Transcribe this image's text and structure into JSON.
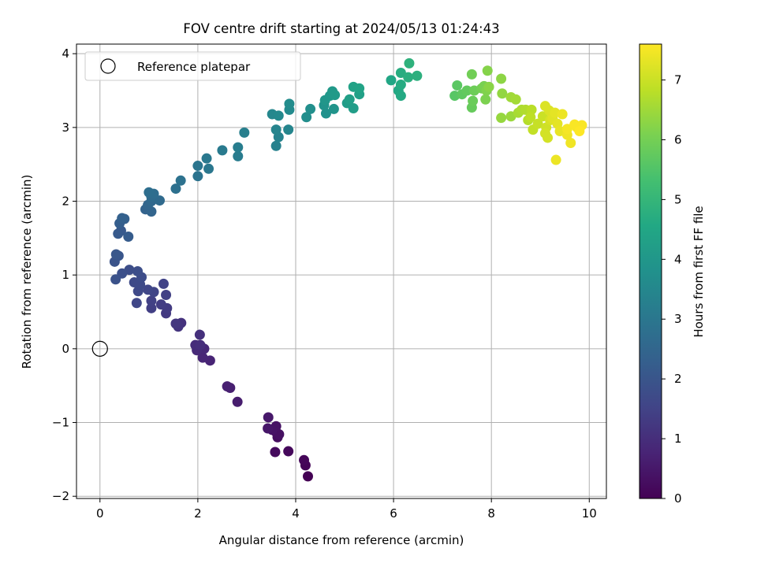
{
  "chart_data": {
    "type": "scatter",
    "title": "FOV centre drift starting at 2024/05/13 01:24:43",
    "xlabel": "Angular distance from reference (arcmin)",
    "ylabel": "Rotation from reference (arcmin)",
    "xlim": [
      -0.48,
      10.35
    ],
    "ylim": [
      -2.03,
      4.13
    ],
    "xticks": [
      0,
      2,
      4,
      6,
      8,
      10
    ],
    "xtick_labels": [
      "0",
      "2",
      "4",
      "6",
      "8",
      "10"
    ],
    "yticks": [
      -2,
      -1,
      0,
      1,
      2,
      3,
      4
    ],
    "ytick_labels": [
      "−2",
      "−1",
      "0",
      "1",
      "2",
      "3",
      "4"
    ],
    "grid": true,
    "legend": {
      "position": "top-left",
      "entries": [
        "Reference platepar"
      ]
    },
    "reference_point": {
      "x": 0,
      "y": 0,
      "label": "Reference platepar"
    },
    "colorbar": {
      "label": "Hours from first FF file",
      "min": 0,
      "max": 7.6,
      "ticks": [
        0,
        1,
        2,
        3,
        4,
        5,
        6,
        7
      ],
      "tick_labels": [
        "0",
        "1",
        "2",
        "3",
        "4",
        "5",
        "6",
        "7"
      ],
      "colormap": "viridis"
    },
    "series": [
      {
        "points": [
          [
            4.25,
            -1.73,
            0.0
          ],
          [
            4.2,
            -1.58,
            0.05
          ],
          [
            4.17,
            -1.51,
            0.1
          ],
          [
            3.85,
            -1.39,
            0.15
          ],
          [
            3.58,
            -1.4,
            0.2
          ],
          [
            3.63,
            -1.2,
            0.25
          ],
          [
            3.6,
            -1.13,
            0.3
          ],
          [
            3.66,
            -1.16,
            0.33
          ],
          [
            3.6,
            -1.05,
            0.36
          ],
          [
            3.52,
            -1.1,
            0.4
          ],
          [
            3.43,
            -1.08,
            0.45
          ],
          [
            3.44,
            -0.93,
            0.5
          ],
          [
            2.81,
            -0.72,
            0.6
          ],
          [
            2.66,
            -0.53,
            0.65
          ],
          [
            2.6,
            -0.51,
            0.7
          ],
          [
            2.25,
            -0.16,
            0.75
          ],
          [
            2.1,
            -0.12,
            0.8
          ],
          [
            2.13,
            0.0,
            0.85
          ],
          [
            1.98,
            -0.02,
            0.9
          ],
          [
            1.95,
            0.05,
            0.95
          ],
          [
            2.05,
            0.05,
            1.0
          ],
          [
            2.04,
            0.19,
            1.05
          ],
          [
            1.66,
            0.35,
            1.1
          ],
          [
            1.6,
            0.3,
            1.15
          ],
          [
            1.55,
            0.34,
            1.2
          ],
          [
            1.35,
            0.48,
            1.25
          ],
          [
            1.37,
            0.55,
            1.3
          ],
          [
            1.25,
            0.6,
            1.35
          ],
          [
            1.05,
            0.55,
            1.4
          ],
          [
            1.05,
            0.65,
            1.45
          ],
          [
            1.35,
            0.73,
            1.45
          ],
          [
            1.3,
            0.88,
            1.5
          ],
          [
            1.1,
            0.77,
            1.55
          ],
          [
            0.98,
            0.8,
            1.6
          ],
          [
            0.75,
            0.62,
            1.6
          ],
          [
            0.78,
            0.78,
            1.65
          ],
          [
            0.82,
            0.87,
            1.7
          ],
          [
            0.7,
            0.9,
            1.7
          ],
          [
            0.85,
            0.97,
            1.75
          ],
          [
            0.77,
            1.05,
            1.8
          ],
          [
            0.6,
            1.07,
            1.8
          ],
          [
            0.45,
            1.02,
            1.85
          ],
          [
            0.32,
            0.94,
            1.9
          ],
          [
            0.3,
            1.18,
            1.95
          ],
          [
            0.38,
            1.26,
            2.0
          ],
          [
            0.33,
            1.28,
            2.05
          ],
          [
            0.43,
            1.6,
            2.1
          ],
          [
            0.37,
            1.56,
            2.15
          ],
          [
            0.58,
            1.52,
            2.2
          ],
          [
            0.4,
            1.7,
            2.25
          ],
          [
            0.5,
            1.76,
            2.3
          ],
          [
            0.45,
            1.77,
            2.35
          ],
          [
            0.93,
            1.89,
            2.4
          ],
          [
            1.05,
            1.86,
            2.45
          ],
          [
            0.98,
            1.95,
            2.5
          ],
          [
            1.05,
            2.0,
            2.55
          ],
          [
            1.22,
            2.01,
            2.6
          ],
          [
            1.05,
            2.06,
            2.65
          ],
          [
            1.1,
            2.1,
            2.7
          ],
          [
            1.0,
            2.12,
            2.75
          ],
          [
            1.55,
            2.17,
            2.8
          ],
          [
            1.65,
            2.28,
            2.85
          ],
          [
            2.0,
            2.34,
            2.9
          ],
          [
            2.0,
            2.48,
            2.95
          ],
          [
            2.22,
            2.44,
            3.0
          ],
          [
            2.18,
            2.58,
            3.05
          ],
          [
            2.5,
            2.69,
            3.1
          ],
          [
            2.82,
            2.61,
            3.15
          ],
          [
            2.82,
            2.73,
            3.2
          ],
          [
            2.95,
            2.93,
            3.25
          ],
          [
            3.6,
            2.75,
            3.3
          ],
          [
            3.65,
            2.87,
            3.35
          ],
          [
            3.6,
            2.97,
            3.4
          ],
          [
            3.85,
            2.97,
            3.45
          ],
          [
            3.52,
            3.18,
            3.5
          ],
          [
            3.65,
            3.16,
            3.55
          ],
          [
            3.87,
            3.24,
            3.6
          ],
          [
            3.87,
            3.32,
            3.65
          ],
          [
            4.22,
            3.14,
            3.7
          ],
          [
            4.3,
            3.25,
            3.75
          ],
          [
            4.62,
            3.19,
            3.8
          ],
          [
            4.58,
            3.3,
            3.85
          ],
          [
            4.78,
            3.25,
            3.9
          ],
          [
            4.6,
            3.37,
            3.95
          ],
          [
            4.7,
            3.43,
            4.0
          ],
          [
            4.75,
            3.49,
            4.05
          ],
          [
            4.8,
            3.44,
            4.1
          ],
          [
            5.05,
            3.33,
            4.15
          ],
          [
            5.18,
            3.26,
            4.2
          ],
          [
            5.1,
            3.38,
            4.25
          ],
          [
            5.3,
            3.45,
            4.3
          ],
          [
            5.18,
            3.55,
            4.35
          ],
          [
            5.3,
            3.53,
            4.4
          ],
          [
            5.95,
            3.64,
            4.5
          ],
          [
            6.1,
            3.5,
            4.55
          ],
          [
            6.15,
            3.43,
            4.6
          ],
          [
            6.15,
            3.58,
            4.65
          ],
          [
            6.15,
            3.74,
            4.7
          ],
          [
            6.3,
            3.68,
            4.75
          ],
          [
            6.48,
            3.7,
            4.8
          ],
          [
            6.32,
            3.87,
            4.85
          ],
          [
            7.25,
            3.43,
            5.6
          ],
          [
            7.3,
            3.57,
            5.65
          ],
          [
            7.4,
            3.45,
            5.7
          ],
          [
            7.5,
            3.5,
            5.75
          ],
          [
            7.6,
            3.27,
            5.8
          ],
          [
            7.62,
            3.36,
            5.85
          ],
          [
            7.65,
            3.5,
            5.9
          ],
          [
            7.6,
            3.72,
            5.95
          ],
          [
            7.8,
            3.53,
            6.0
          ],
          [
            7.85,
            3.56,
            6.05
          ],
          [
            7.88,
            3.38,
            6.1
          ],
          [
            7.9,
            3.5,
            6.15
          ],
          [
            7.92,
            3.77,
            6.2
          ],
          [
            7.95,
            3.55,
            6.25
          ],
          [
            8.2,
            3.66,
            6.3
          ],
          [
            8.22,
            3.46,
            6.35
          ],
          [
            8.2,
            3.13,
            6.4
          ],
          [
            8.4,
            3.15,
            6.45
          ],
          [
            8.4,
            3.41,
            6.5
          ],
          [
            8.5,
            3.38,
            6.55
          ],
          [
            8.55,
            3.2,
            6.6
          ],
          [
            8.62,
            3.24,
            6.65
          ],
          [
            8.7,
            3.24,
            6.7
          ],
          [
            8.75,
            3.1,
            6.75
          ],
          [
            8.82,
            3.24,
            6.8
          ],
          [
            8.8,
            3.14,
            6.85
          ],
          [
            8.85,
            2.97,
            6.9
          ],
          [
            8.95,
            3.05,
            6.95
          ],
          [
            9.05,
            3.15,
            7.0
          ],
          [
            9.12,
            3.0,
            7.05
          ],
          [
            9.15,
            2.86,
            7.1
          ],
          [
            9.1,
            2.92,
            7.1
          ],
          [
            9.2,
            3.1,
            7.15
          ],
          [
            9.1,
            3.29,
            7.2
          ],
          [
            9.18,
            3.23,
            7.2
          ],
          [
            9.25,
            3.12,
            7.25
          ],
          [
            9.3,
            3.2,
            7.3
          ],
          [
            9.35,
            3.05,
            7.3
          ],
          [
            9.4,
            2.95,
            7.35
          ],
          [
            9.45,
            3.18,
            7.4
          ],
          [
            9.32,
            2.56,
            7.4
          ],
          [
            9.55,
            2.9,
            7.45
          ],
          [
            9.62,
            2.79,
            7.45
          ],
          [
            9.55,
            2.98,
            7.5
          ],
          [
            9.75,
            3.0,
            7.5
          ],
          [
            9.7,
            3.04,
            7.55
          ],
          [
            9.85,
            3.03,
            7.55
          ],
          [
            9.8,
            2.95,
            7.6
          ]
        ]
      }
    ]
  }
}
